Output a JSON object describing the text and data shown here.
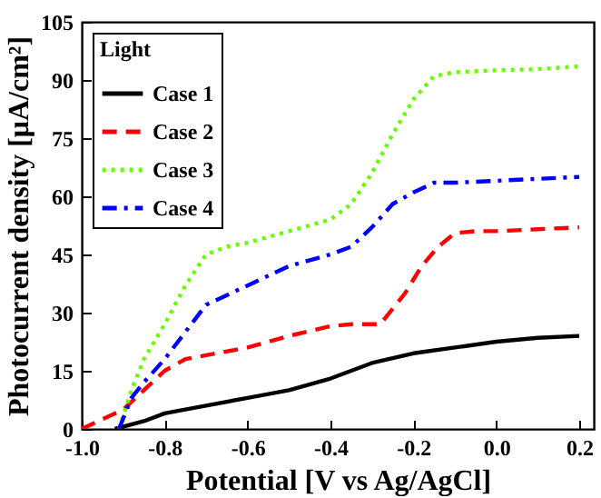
{
  "chart_data": {
    "type": "line",
    "xlabel": "Potential [V vs Ag/AgCl]",
    "ylabel": "Photocurrent density [μA/cm²]",
    "legend_title": "Light",
    "legend": "top left",
    "grid": false,
    "xlim": [
      -1.0,
      0.235
    ],
    "ylim": [
      0,
      105
    ],
    "xticks": [
      {
        "value": -1.0,
        "label": "-1.0"
      },
      -0.8,
      -0.6,
      -0.4,
      -0.2,
      {
        "value": 0,
        "label": "0.0"
      },
      0.2
    ],
    "yticks": [
      0,
      15,
      30,
      45,
      60,
      75,
      90,
      105
    ],
    "series": [
      {
        "name": "Case 1",
        "color": "#000000",
        "line_style": "solid",
        "x": [
          -0.92,
          -0.85,
          -0.8,
          -0.7,
          -0.6,
          -0.5,
          -0.4,
          -0.3,
          -0.2,
          -0.1,
          0.0,
          0.1,
          0.2
        ],
        "values": [
          0,
          2,
          4,
          6,
          8,
          10,
          13,
          17,
          19.5,
          21,
          22.5,
          23.5,
          24
        ]
      },
      {
        "name": "Case 2",
        "color": "#ff0000",
        "line_style": "dashed",
        "x": [
          -1.0,
          -0.9,
          -0.85,
          -0.8,
          -0.75,
          -0.7,
          -0.6,
          -0.5,
          -0.4,
          -0.35,
          -0.28,
          -0.22,
          -0.18,
          -0.14,
          -0.1,
          -0.05,
          0.0,
          0.1,
          0.2
        ],
        "values": [
          0,
          5,
          10,
          15,
          18,
          19,
          21,
          24,
          26.5,
          27,
          27,
          35,
          42,
          47,
          50.5,
          51,
          51,
          51.5,
          52
        ]
      },
      {
        "name": "Case 3",
        "color": "#66ff00",
        "line_style": "dotted",
        "x": [
          -0.91,
          -0.88,
          -0.85,
          -0.8,
          -0.75,
          -0.7,
          -0.65,
          -0.6,
          -0.5,
          -0.4,
          -0.35,
          -0.3,
          -0.25,
          -0.2,
          -0.15,
          -0.1,
          0.0,
          0.1,
          0.2
        ],
        "values": [
          0,
          10,
          18,
          27,
          37,
          45,
          47,
          48,
          51,
          54,
          58,
          66,
          76,
          85,
          91,
          92,
          92.5,
          92.8,
          93.5
        ]
      },
      {
        "name": "Case 4",
        "color": "#0000ff",
        "line_style": "dashdot",
        "x": [
          -0.91,
          -0.88,
          -0.85,
          -0.8,
          -0.75,
          -0.7,
          -0.6,
          -0.5,
          -0.4,
          -0.35,
          -0.3,
          -0.25,
          -0.2,
          -0.15,
          -0.1,
          0.0,
          0.1,
          0.2
        ],
        "values": [
          0,
          8,
          12,
          18,
          25,
          32,
          37,
          42,
          45,
          47,
          52,
          58,
          61,
          63.5,
          63.5,
          64,
          64.5,
          65
        ]
      }
    ]
  }
}
